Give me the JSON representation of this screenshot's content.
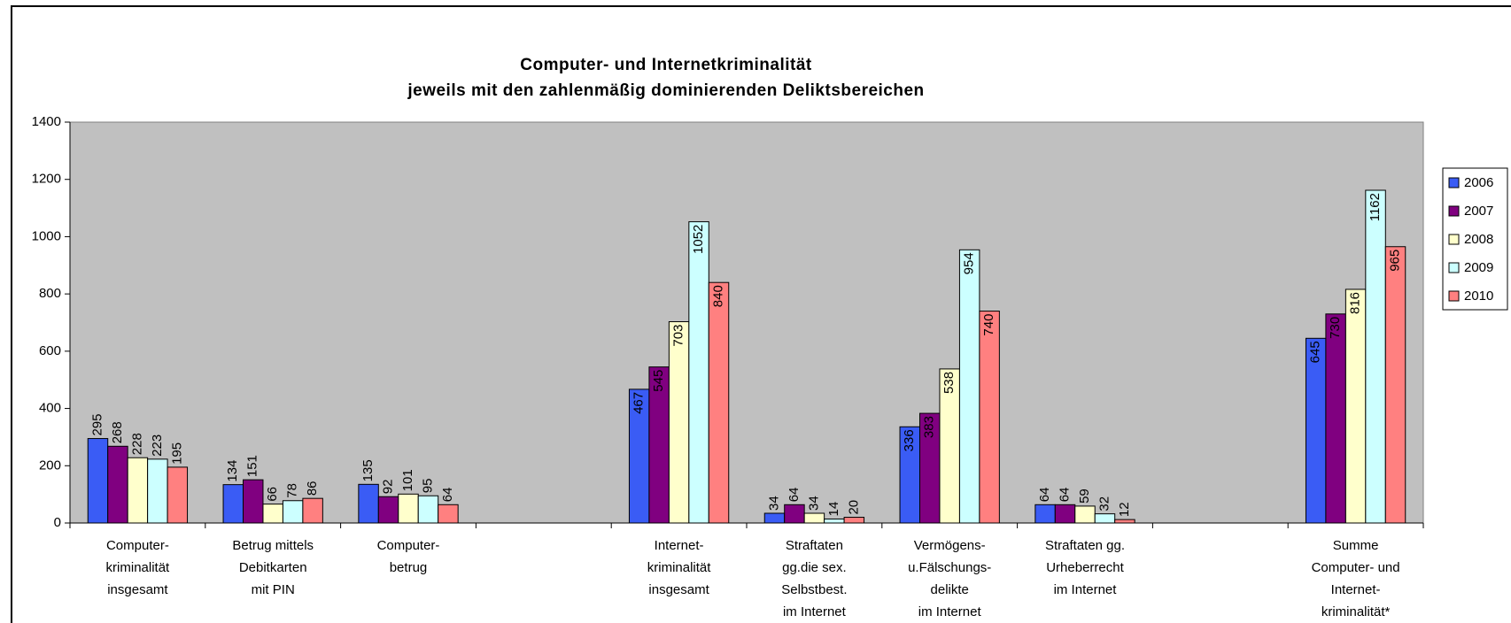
{
  "chart_data": {
    "type": "bar",
    "title": "Computer- und Internetkriminalität",
    "subtitle": "jeweils mit den zahlenmäßig dominierenden Deliktsbereichen",
    "categories": [
      [
        "Computer-",
        "kriminalität",
        "insgesamt"
      ],
      [
        "Betrug mittels",
        "Debitkarten",
        "mit PIN"
      ],
      [
        "Computer-",
        "betrug"
      ],
      null,
      [
        "Internet-",
        "kriminalität",
        "insgesamt"
      ],
      [
        "Straftaten",
        "gg.die sex.",
        "Selbstbest.",
        "im Internet"
      ],
      [
        "Vermögens-",
        "u.Fälschungs-",
        "delikte",
        "im Internet"
      ],
      [
        "Straftaten gg.",
        "Urheberrecht",
        "im Internet"
      ],
      null,
      [
        "Summe",
        "Computer- und",
        "Internet-",
        "kriminalität*"
      ]
    ],
    "series": [
      {
        "name": "2006",
        "color": "#3a5cf5",
        "values": [
          295,
          134,
          135,
          null,
          467,
          34,
          336,
          64,
          null,
          645
        ]
      },
      {
        "name": "2007",
        "color": "#800080",
        "values": [
          268,
          151,
          92,
          null,
          545,
          64,
          383,
          64,
          null,
          730
        ]
      },
      {
        "name": "2008",
        "color": "#ffffcc",
        "values": [
          228,
          66,
          101,
          null,
          703,
          34,
          538,
          59,
          null,
          816
        ]
      },
      {
        "name": "2009",
        "color": "#ccffff",
        "values": [
          223,
          78,
          95,
          null,
          1052,
          14,
          954,
          32,
          null,
          1162
        ]
      },
      {
        "name": "2010",
        "color": "#ff8080",
        "values": [
          195,
          86,
          64,
          null,
          840,
          20,
          740,
          12,
          null,
          965
        ]
      }
    ],
    "ylim": [
      0,
      1400
    ],
    "yticks": [
      0,
      200,
      400,
      600,
      800,
      1000,
      1200,
      1400
    ],
    "grid": false,
    "legend": "right",
    "plot_background": "#c0c0c0"
  }
}
